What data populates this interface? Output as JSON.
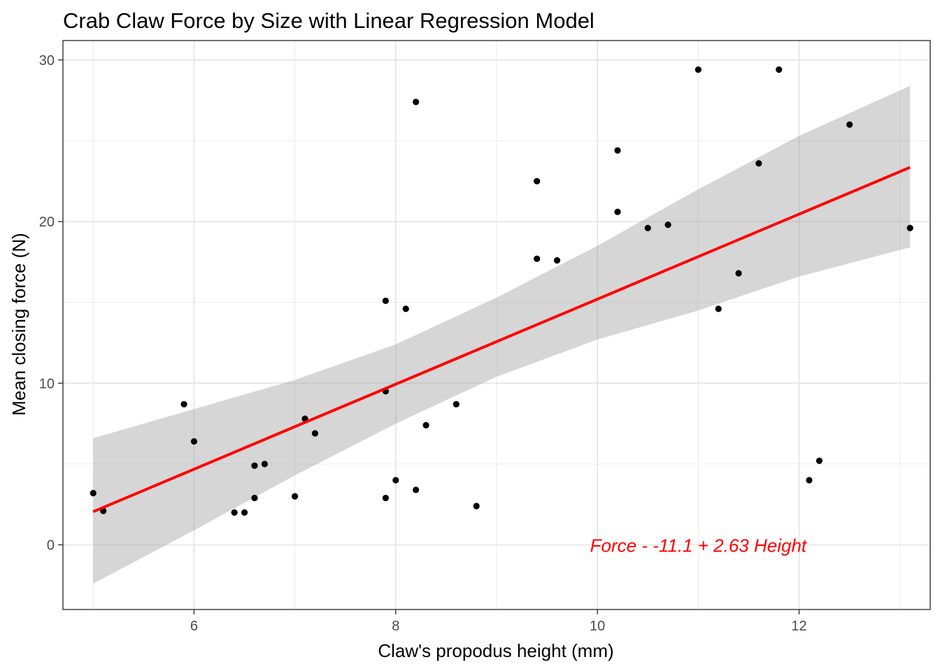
{
  "chart_data": {
    "type": "scatter",
    "title": "Crab Claw Force by Size with Linear Regression Model",
    "xlabel": "Claw's propodus height (mm)",
    "ylabel": "Mean closing force (N)",
    "xlim": [
      4.7,
      13.3
    ],
    "ylim": [
      -4.0,
      31.2
    ],
    "x_major_ticks": [
      6,
      8,
      10,
      12
    ],
    "x_minor_ticks": [
      5,
      7,
      9,
      11,
      13
    ],
    "y_major_ticks": [
      0,
      10,
      20,
      30
    ],
    "y_minor_ticks": [
      5,
      15,
      25
    ],
    "grid": true,
    "points": [
      {
        "x": 5.0,
        "y": 3.2
      },
      {
        "x": 5.1,
        "y": 2.1
      },
      {
        "x": 5.9,
        "y": 8.7
      },
      {
        "x": 6.0,
        "y": 6.4
      },
      {
        "x": 6.4,
        "y": 2.0
      },
      {
        "x": 6.5,
        "y": 2.0
      },
      {
        "x": 6.6,
        "y": 4.9
      },
      {
        "x": 6.6,
        "y": 2.9
      },
      {
        "x": 6.7,
        "y": 5.0
      },
      {
        "x": 7.0,
        "y": 3.0
      },
      {
        "x": 7.1,
        "y": 7.8
      },
      {
        "x": 7.2,
        "y": 6.9
      },
      {
        "x": 7.9,
        "y": 15.1
      },
      {
        "x": 7.9,
        "y": 9.5
      },
      {
        "x": 7.9,
        "y": 2.9
      },
      {
        "x": 8.0,
        "y": 4.0
      },
      {
        "x": 8.1,
        "y": 14.6
      },
      {
        "x": 8.2,
        "y": 27.4
      },
      {
        "x": 8.2,
        "y": 3.4
      },
      {
        "x": 8.3,
        "y": 7.4
      },
      {
        "x": 8.6,
        "y": 8.7
      },
      {
        "x": 8.8,
        "y": 2.4
      },
      {
        "x": 9.4,
        "y": 22.5
      },
      {
        "x": 9.4,
        "y": 17.7
      },
      {
        "x": 9.6,
        "y": 17.6
      },
      {
        "x": 10.2,
        "y": 24.4
      },
      {
        "x": 10.2,
        "y": 20.6
      },
      {
        "x": 10.5,
        "y": 19.6
      },
      {
        "x": 10.7,
        "y": 19.8
      },
      {
        "x": 11.0,
        "y": 29.4
      },
      {
        "x": 11.2,
        "y": 14.6
      },
      {
        "x": 11.4,
        "y": 16.8
      },
      {
        "x": 11.6,
        "y": 23.6
      },
      {
        "x": 11.8,
        "y": 29.4
      },
      {
        "x": 12.1,
        "y": 4.0
      },
      {
        "x": 12.2,
        "y": 5.2
      },
      {
        "x": 12.5,
        "y": 26.0
      },
      {
        "x": 13.1,
        "y": 19.6
      }
    ],
    "regression": {
      "intercept": -11.1,
      "slope": 2.63,
      "x_range": [
        5.0,
        13.1
      ],
      "line_color": "#ff0000",
      "band_color": "#999999",
      "confidence_band": [
        {
          "x": 5.0,
          "lower": -2.4,
          "upper": 6.6
        },
        {
          "x": 6.0,
          "lower": 0.9,
          "upper": 8.4
        },
        {
          "x": 7.0,
          "lower": 4.3,
          "upper": 10.2
        },
        {
          "x": 8.0,
          "lower": 7.5,
          "upper": 12.4
        },
        {
          "x": 9.0,
          "lower": 10.4,
          "upper": 15.3
        },
        {
          "x": 10.0,
          "lower": 12.7,
          "upper": 18.5
        },
        {
          "x": 11.0,
          "lower": 14.5,
          "upper": 22.0
        },
        {
          "x": 12.0,
          "lower": 16.6,
          "upper": 25.3
        },
        {
          "x": 13.1,
          "lower": 18.4,
          "upper": 28.4
        }
      ]
    },
    "annotation": {
      "text": "Force -  -11.1  +  2.63  Height",
      "x": 11.0,
      "y": 0.0,
      "color": "#ff0000"
    }
  }
}
